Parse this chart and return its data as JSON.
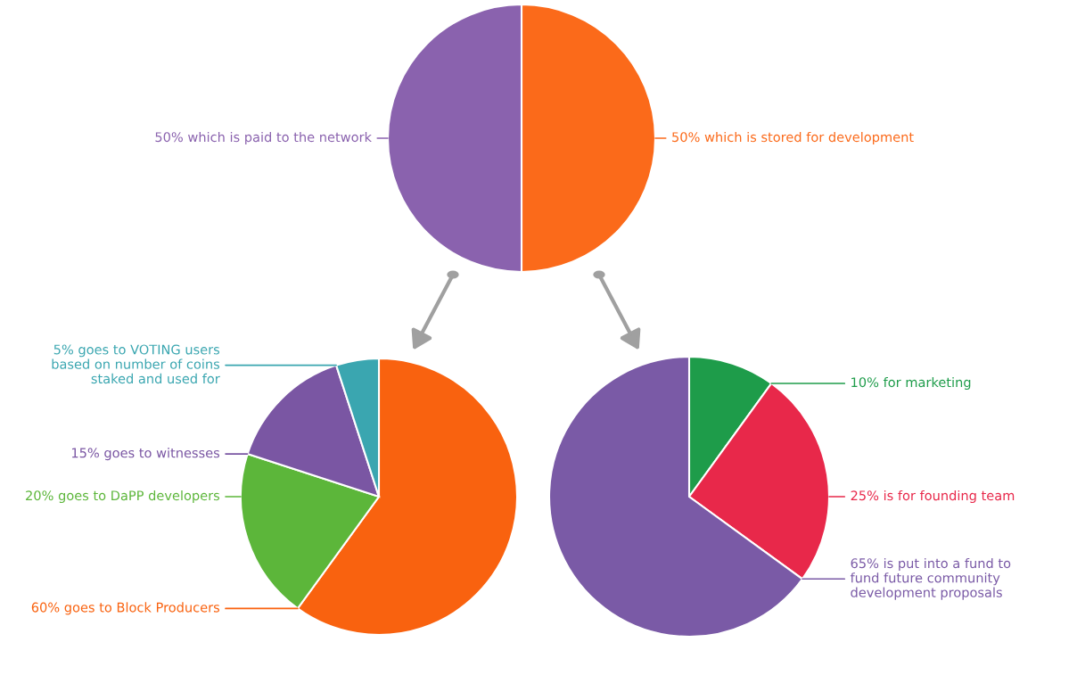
{
  "chart_data": [
    {
      "type": "pie",
      "categories": [
        "50% which is stored for development",
        "50% which is paid to the network"
      ],
      "values": [
        50,
        50
      ],
      "colors": [
        "#fb6a1a",
        "#8a62ae"
      ]
    },
    {
      "type": "pie",
      "categories": [
        "60% goes to Block Producers",
        "20% goes to DaPP developers",
        "15% goes to witnesses",
        "5% goes to VOTING users\nbased on number of coins\nstaked and used for"
      ],
      "values": [
        60,
        20,
        15,
        5
      ],
      "colors": [
        "#f9620f",
        "#5cb63a",
        "#7a56a3",
        "#3aa6b0"
      ]
    },
    {
      "type": "pie",
      "categories": [
        "10% for marketing",
        "25% is for founding team",
        "65% is put into a fund to\nfund future community\ndevelopment proposals"
      ],
      "values": [
        10,
        25,
        65
      ],
      "colors": [
        "#1e9c4a",
        "#e8284a",
        "#7a5aa6"
      ]
    }
  ]
}
